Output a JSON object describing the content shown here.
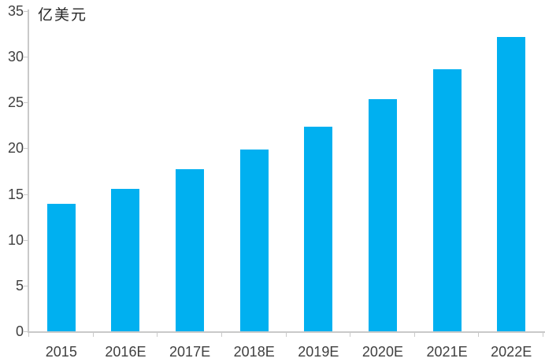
{
  "chart_data": {
    "type": "bar",
    "title": "亿美元",
    "categories": [
      "2015",
      "2016E",
      "2017E",
      "2018E",
      "2019E",
      "2020E",
      "2021E",
      "2022E"
    ],
    "values": [
      13.9,
      15.6,
      17.7,
      19.9,
      22.4,
      25.4,
      28.6,
      32.2
    ],
    "xlabel": "",
    "ylabel": "亿美元",
    "ylim": [
      0,
      35
    ],
    "y_ticks": [
      0,
      5,
      10,
      15,
      20,
      25,
      30,
      35
    ],
    "grid": false,
    "legend_position": "none",
    "colors": {
      "bar": "#00B0F0",
      "axis": "#c9c9c9",
      "tick_label": "#3f3f3f",
      "title": "#262626"
    }
  }
}
